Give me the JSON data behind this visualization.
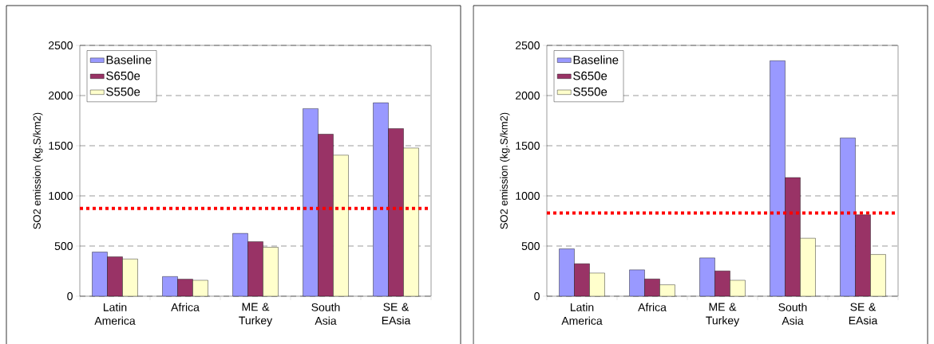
{
  "chart_data": [
    {
      "type": "bar",
      "categories": [
        "Latin America",
        "Africa",
        "ME & Turkey",
        "South Asia",
        "SE & EAsia"
      ],
      "ylabel": "SO2 emission (kg.S/km2)",
      "ylim": [
        0,
        2500
      ],
      "yticks": [
        0,
        500,
        1000,
        1500,
        2000,
        2500
      ],
      "grid": "y",
      "legend": "top left",
      "series": [
        {
          "name": "Baseline",
          "color": "#9999ff",
          "values": [
            440,
            196,
            626,
            1870,
            1928
          ]
        },
        {
          "name": "S650e",
          "color": "#993366",
          "values": [
            393,
            170,
            544,
            1615,
            1671
          ]
        },
        {
          "name": "S550e",
          "color": "#ffffcc",
          "values": [
            371,
            159,
            488,
            1406,
            1477
          ]
        }
      ],
      "ref_lines": [
        {
          "axis": "y",
          "value": 875,
          "color": "#ff0000",
          "line_style": "dotted"
        }
      ]
    },
    {
      "type": "bar",
      "categories": [
        "Latin America",
        "Africa",
        "ME & Turkey",
        "South Asia",
        "SE & EAsia"
      ],
      "ylabel": "SO2 emission (kg.S/km2)",
      "ylim": [
        0,
        2500
      ],
      "yticks": [
        0,
        500,
        1000,
        1500,
        2000,
        2500
      ],
      "grid": "y",
      "legend": "top left",
      "series": [
        {
          "name": "Baseline",
          "color": "#9999ff",
          "values": [
            472,
            263,
            382,
            2347,
            1578
          ]
        },
        {
          "name": "S650e",
          "color": "#993366",
          "values": [
            324,
            172,
            252,
            1183,
            812
          ]
        },
        {
          "name": "S550e",
          "color": "#ffffcc",
          "values": [
            231,
            114,
            159,
            578,
            416
          ]
        }
      ],
      "ref_lines": [
        {
          "axis": "y",
          "value": 830,
          "color": "#ff0000",
          "line_style": "dotted"
        }
      ]
    }
  ]
}
